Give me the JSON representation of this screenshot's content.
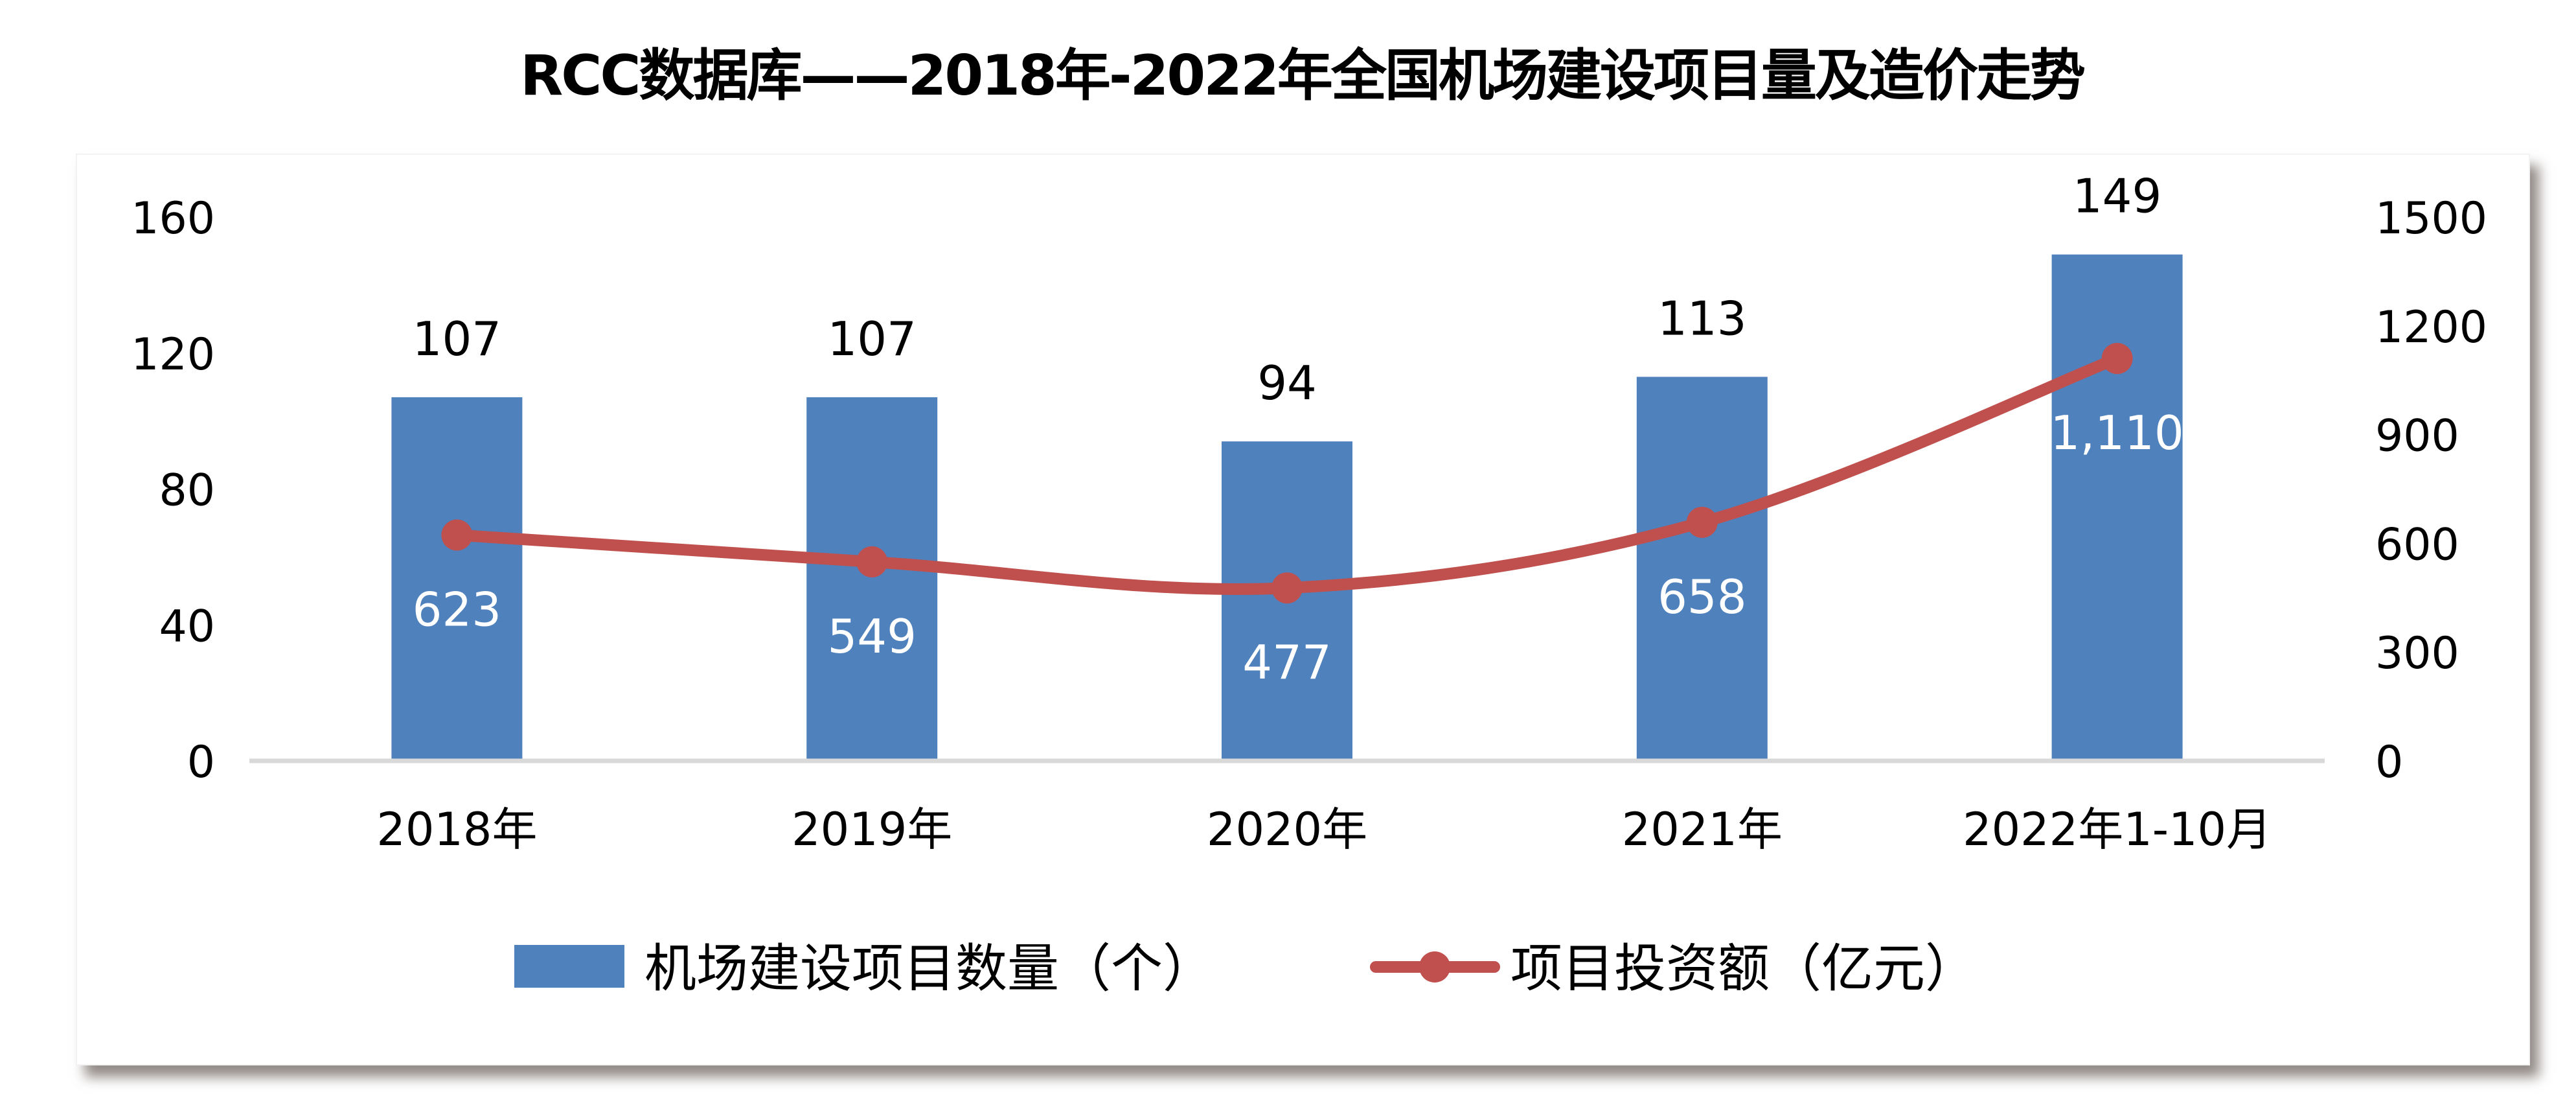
{
  "title": "RCC数据库——2018年-2022年全国机场建设项目量及造价走势",
  "colors": {
    "bar": "#4F81BD",
    "line": "#C0504D",
    "axis": "#D9D9D9",
    "background": "#FFFFFF"
  },
  "chart_data": {
    "type": "bar+line",
    "title": "RCC数据库——2018年-2022年全国机场建设项目量及造价走势",
    "categories": [
      "2018年",
      "2019年",
      "2020年",
      "2021年",
      "2022年1-10月"
    ],
    "series": [
      {
        "name": "机场建设项目数量（个）",
        "type": "bar",
        "axis": "left",
        "values": [
          107,
          107,
          94,
          113,
          149
        ],
        "labels": [
          "107",
          "107",
          "94",
          "113",
          "149"
        ]
      },
      {
        "name": "项目投资额（亿元）",
        "type": "line",
        "axis": "right",
        "smooth": true,
        "values": [
          623,
          549,
          477,
          658,
          1110
        ],
        "labels": [
          "623",
          "549",
          "477",
          "658",
          "1,110"
        ]
      }
    ],
    "left_axis": {
      "ticks": [
        0,
        40,
        80,
        120,
        160
      ],
      "ylim": [
        0,
        160
      ]
    },
    "right_axis": {
      "ticks": [
        0,
        300,
        600,
        900,
        1200,
        1500
      ],
      "ylim": [
        0,
        1500
      ]
    },
    "xlabel": "",
    "ylabel": "",
    "grid": false,
    "legend_position": "bottom"
  },
  "legend": {
    "bar_label": "机场建设项目数量（个）",
    "line_label": "项目投资额（亿元）"
  }
}
